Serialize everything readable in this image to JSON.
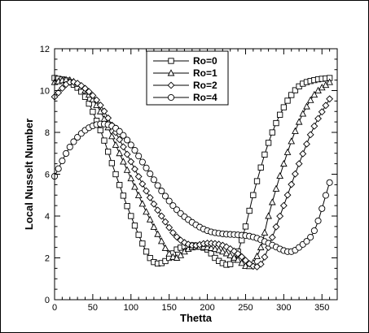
{
  "chart_data": {
    "type": "line",
    "xlabel": "Thetta",
    "ylabel": "Local Nusselt Number",
    "xlim": [
      0,
      370
    ],
    "ylim": [
      0,
      12
    ],
    "xticks": [
      0,
      50,
      100,
      150,
      200,
      250,
      300,
      350
    ],
    "yticks": [
      0,
      2,
      4,
      6,
      8,
      10,
      12
    ],
    "x_minor_step": 10,
    "y_minor_step": 0.5,
    "grid": false,
    "legend_position": "top-center",
    "series": [
      {
        "name": "Ro=0",
        "marker": "square",
        "points": [
          [
            0,
            10.6
          ],
          [
            20,
            10.4
          ],
          [
            40,
            9.7
          ],
          [
            60,
            8.1
          ],
          [
            80,
            6.0
          ],
          [
            100,
            4.0
          ],
          [
            120,
            2.3
          ],
          [
            130,
            1.8
          ],
          [
            140,
            1.75
          ],
          [
            150,
            2.0
          ],
          [
            160,
            2.4
          ],
          [
            180,
            2.6
          ],
          [
            200,
            2.4
          ],
          [
            210,
            2.0
          ],
          [
            220,
            1.75
          ],
          [
            230,
            1.7
          ],
          [
            240,
            2.3
          ],
          [
            250,
            3.5
          ],
          [
            260,
            5.0
          ],
          [
            280,
            7.5
          ],
          [
            300,
            9.2
          ],
          [
            320,
            10.2
          ],
          [
            340,
            10.5
          ],
          [
            360,
            10.6
          ]
        ]
      },
      {
        "name": "Ro=1",
        "marker": "triangle",
        "points": [
          [
            0,
            10.4
          ],
          [
            20,
            10.5
          ],
          [
            40,
            10.0
          ],
          [
            60,
            9.0
          ],
          [
            80,
            7.4
          ],
          [
            100,
            5.8
          ],
          [
            120,
            4.2
          ],
          [
            140,
            2.8
          ],
          [
            150,
            2.2
          ],
          [
            160,
            2.0
          ],
          [
            170,
            2.3
          ],
          [
            180,
            2.5
          ],
          [
            200,
            2.5
          ],
          [
            220,
            2.3
          ],
          [
            240,
            1.9
          ],
          [
            255,
            1.6
          ],
          [
            270,
            2.5
          ],
          [
            280,
            4.0
          ],
          [
            300,
            6.5
          ],
          [
            320,
            8.5
          ],
          [
            340,
            9.8
          ],
          [
            360,
            10.4
          ]
        ]
      },
      {
        "name": "Ro=2",
        "marker": "diamond",
        "points": [
          [
            0,
            9.7
          ],
          [
            20,
            10.4
          ],
          [
            40,
            10.1
          ],
          [
            60,
            9.3
          ],
          [
            80,
            8.0
          ],
          [
            100,
            6.6
          ],
          [
            120,
            5.2
          ],
          [
            140,
            4.0
          ],
          [
            160,
            3.0
          ],
          [
            180,
            2.6
          ],
          [
            200,
            2.7
          ],
          [
            220,
            2.6
          ],
          [
            240,
            2.2
          ],
          [
            260,
            1.6
          ],
          [
            270,
            1.7
          ],
          [
            280,
            2.5
          ],
          [
            300,
            4.5
          ],
          [
            320,
            6.5
          ],
          [
            340,
            8.3
          ],
          [
            360,
            9.6
          ]
        ]
      },
      {
        "name": "Ro=4",
        "marker": "circle",
        "points": [
          [
            0,
            5.9
          ],
          [
            20,
            7.3
          ],
          [
            40,
            8.1
          ],
          [
            60,
            8.4
          ],
          [
            80,
            8.2
          ],
          [
            100,
            7.4
          ],
          [
            120,
            6.3
          ],
          [
            140,
            5.2
          ],
          [
            160,
            4.3
          ],
          [
            180,
            3.7
          ],
          [
            200,
            3.3
          ],
          [
            220,
            3.15
          ],
          [
            240,
            3.1
          ],
          [
            260,
            3.0
          ],
          [
            280,
            2.7
          ],
          [
            300,
            2.35
          ],
          [
            310,
            2.3
          ],
          [
            320,
            2.5
          ],
          [
            340,
            3.3
          ],
          [
            360,
            5.6
          ]
        ]
      }
    ]
  }
}
